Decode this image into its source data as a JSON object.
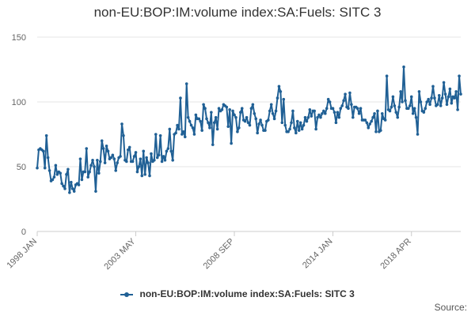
{
  "chart_data": {
    "type": "line",
    "title": "non-EU:BOP:IM:volume index:SA:Fuels: SITC 3",
    "xlabel": "",
    "ylabel": "",
    "ylim": [
      0,
      150
    ],
    "yticks": [
      "0",
      "50",
      "100",
      "150"
    ],
    "xticks": [
      "1998 JAN",
      "2003 MAY",
      "2008 SEP",
      "2014 JAN",
      "2018 APR"
    ],
    "xtick_index": [
      0,
      64,
      128,
      192,
      243
    ],
    "grid": true,
    "color": "#206095",
    "legend_position": "bottom",
    "series": [
      {
        "name": "non-EU:BOP:IM:volume index:SA:Fuels: SITC 3",
        "values": [
          49,
          63,
          64,
          63,
          62,
          49,
          74,
          57,
          47,
          39,
          40,
          42,
          51,
          44,
          46,
          45,
          37,
          35,
          33,
          44,
          48,
          30,
          38,
          33,
          31,
          36,
          37,
          36,
          56,
          40,
          46,
          46,
          64,
          42,
          46,
          51,
          55,
          50,
          31,
          55,
          45,
          54,
          70,
          64,
          53,
          66,
          62,
          56,
          57,
          59,
          56,
          47,
          53,
          57,
          58,
          83,
          74,
          55,
          54,
          63,
          65,
          54,
          54,
          58,
          61,
          46,
          50,
          56,
          43,
          62,
          44,
          57,
          53,
          43,
          60,
          54,
          55,
          75,
          57,
          59,
          74,
          54,
          58,
          55,
          62,
          64,
          79,
          62,
          55,
          75,
          76,
          82,
          79,
          103,
          75,
          77,
          73,
          114,
          88,
          85,
          82,
          80,
          75,
          90,
          87,
          87,
          85,
          78,
          98,
          95,
          87,
          84,
          80,
          92,
          67,
          84,
          88,
          79,
          95,
          93,
          94,
          98,
          97,
          96,
          81,
          94,
          68,
          93,
          90,
          88,
          77,
          80,
          92,
          95,
          86,
          85,
          88,
          84,
          82,
          95,
          98,
          91,
          87,
          76,
          83,
          86,
          82,
          78,
          78,
          85,
          86,
          93,
          98,
          91,
          87,
          93,
          103,
          112,
          108,
          84,
          102,
          82,
          77,
          77,
          79,
          84,
          93,
          80,
          76,
          85,
          78,
          84,
          79,
          82,
          88,
          85,
          88,
          94,
          89,
          93,
          93,
          79,
          88,
          90,
          88,
          91,
          93,
          91,
          95,
          102,
          100,
          95,
          95,
          92,
          84,
          92,
          88,
          95,
          97,
          101,
          106,
          96,
          95,
          107,
          98,
          88,
          96,
          96,
          95,
          91,
          95,
          86,
          86,
          86,
          84,
          80,
          83,
          85,
          88,
          91,
          77,
          93,
          77,
          78,
          91,
          87,
          86,
          120,
          94,
          93,
          96,
          104,
          97,
          92,
          88,
          96,
          108,
          100,
          127,
          101,
          95,
          95,
          97,
          104,
          91,
          95,
          88,
          75,
          108,
          100,
          93,
          92,
          95,
          100,
          102,
          98,
          103,
          112,
          103,
          97,
          98,
          105,
          97,
          103,
          115,
          106,
          98,
          104,
          110,
          99,
          104,
          103,
          108,
          94,
          120,
          106
        ]
      }
    ],
    "source_label": "Source:"
  }
}
